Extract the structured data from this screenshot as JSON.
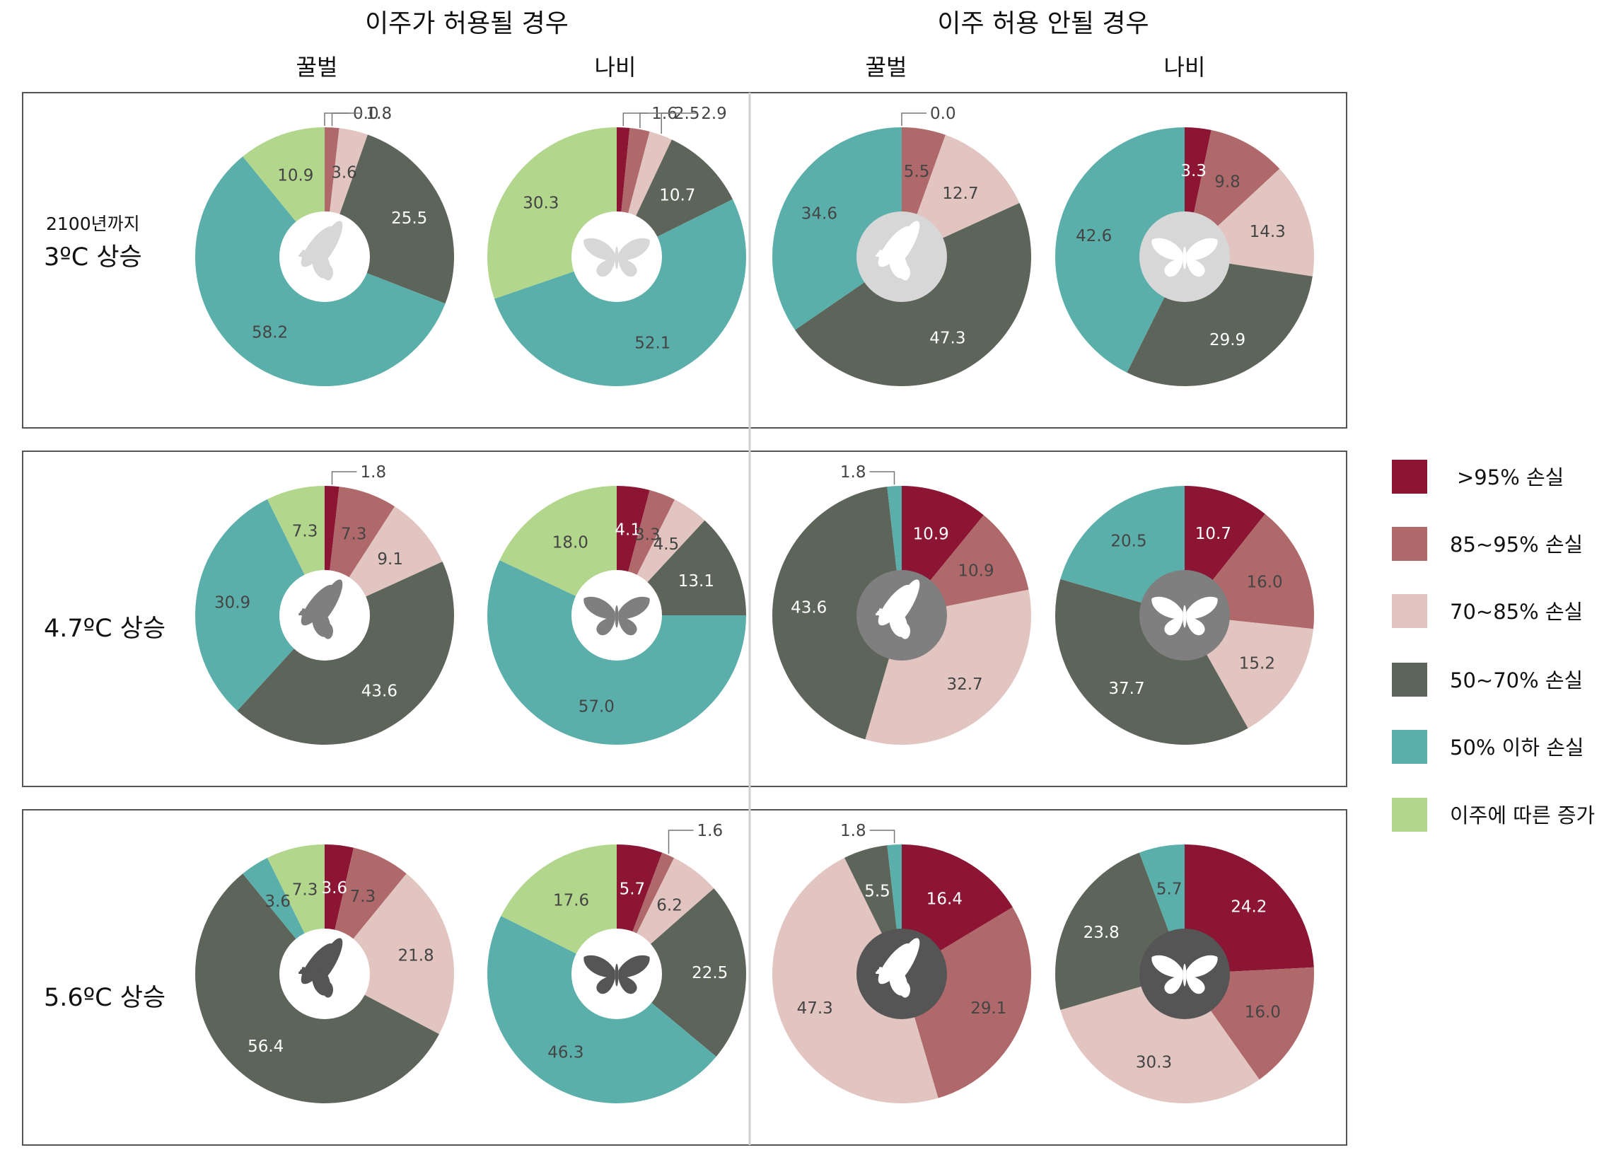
{
  "headers": {
    "group_left": "이주가 허용될 경우",
    "group_right": "이주 허용 안될 경우",
    "columns": [
      "꿀벌",
      "나비",
      "꿀벌",
      "나비"
    ]
  },
  "rows": [
    {
      "label_line1": "2100년까지",
      "label_line2": "3ºC 상승"
    },
    {
      "label_line1": "",
      "label_line2": "4.7ºC 상승"
    },
    {
      "label_line1": "",
      "label_line2": "5.6ºC 상승"
    }
  ],
  "legend": [
    {
      "label": ">95% 손실",
      "color": "#8b1533"
    },
    {
      "label": "85~95% 손실",
      "color": "#b0696b"
    },
    {
      "label": "70~85% 손실",
      "color": "#e2c4c0"
    },
    {
      "label": "50~70% 손실",
      "color": "#5d655a"
    },
    {
      "label": "50% 이하  손실",
      "color": "#5bafab"
    },
    {
      "label": "이주에 따른 증가",
      "color": "#b1d68c"
    }
  ],
  "icon_colors": [
    "#d7d7d7",
    "#7f7f7f",
    "#555555"
  ],
  "chart_data": {
    "type": "pie",
    "category_order": [
      ">95% 손실",
      "85~95% 손실",
      "70~85% 손실",
      "50~70% 손실",
      "50% 이하  손실",
      "이주에 따른 증가"
    ],
    "charts": [
      {
        "row": 0,
        "col": 0,
        "species": "꿀벌",
        "icon": "bee-icon",
        "values": [
          0.0,
          1.8,
          3.6,
          25.5,
          58.2,
          10.9
        ]
      },
      {
        "row": 0,
        "col": 1,
        "species": "나비",
        "icon": "butterfly-icon",
        "values": [
          1.6,
          2.5,
          2.9,
          10.7,
          52.1,
          30.3
        ]
      },
      {
        "row": 0,
        "col": 2,
        "species": "꿀벌",
        "icon": "bee-icon",
        "values": [
          0.0,
          5.5,
          12.7,
          47.3,
          34.6,
          0
        ]
      },
      {
        "row": 0,
        "col": 3,
        "species": "나비",
        "icon": "butterfly-icon",
        "values": [
          3.3,
          9.8,
          14.3,
          29.9,
          42.6,
          0
        ]
      },
      {
        "row": 1,
        "col": 0,
        "species": "꿀벌",
        "icon": "bee-icon",
        "values": [
          1.8,
          7.3,
          9.1,
          43.6,
          30.9,
          7.3
        ]
      },
      {
        "row": 1,
        "col": 1,
        "species": "나비",
        "icon": "butterfly-icon",
        "values": [
          4.1,
          3.3,
          4.5,
          13.1,
          57.0,
          18.0
        ]
      },
      {
        "row": 1,
        "col": 2,
        "species": "꿀벌",
        "icon": "bee-icon",
        "values": [
          10.9,
          10.9,
          32.7,
          43.6,
          1.8,
          0
        ]
      },
      {
        "row": 1,
        "col": 3,
        "species": "나비",
        "icon": "butterfly-icon",
        "values": [
          10.7,
          16.0,
          15.2,
          37.7,
          20.5,
          0
        ]
      },
      {
        "row": 2,
        "col": 0,
        "species": "꿀벌",
        "icon": "bee-icon",
        "values": [
          3.6,
          7.3,
          21.8,
          56.4,
          3.6,
          7.3
        ]
      },
      {
        "row": 2,
        "col": 1,
        "species": "나비",
        "icon": "butterfly-icon",
        "values": [
          5.7,
          1.6,
          6.2,
          22.5,
          46.3,
          17.6
        ]
      },
      {
        "row": 2,
        "col": 2,
        "species": "꿀벌",
        "icon": "bee-icon",
        "values": [
          16.4,
          29.1,
          47.3,
          5.5,
          1.8,
          0
        ]
      },
      {
        "row": 2,
        "col": 3,
        "species": "나비",
        "icon": "butterfly-icon",
        "values": [
          24.2,
          16.0,
          30.3,
          23.8,
          5.7,
          0
        ]
      }
    ]
  }
}
